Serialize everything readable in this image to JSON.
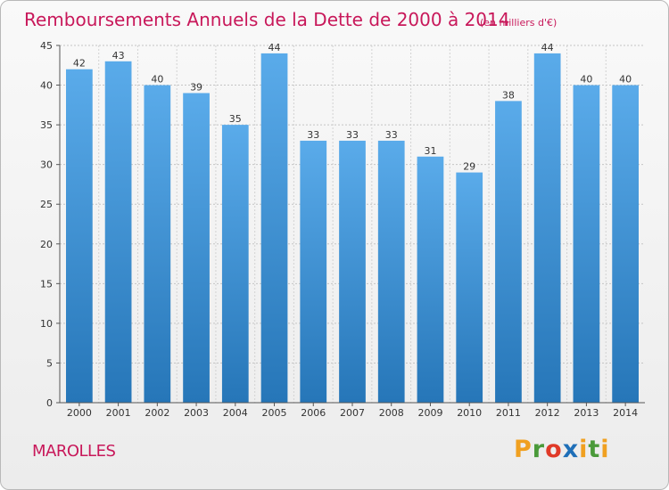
{
  "chart_data": {
    "type": "bar",
    "title": "Remboursements Annuels de la Dette de 2000 à 2014",
    "subtitle": "(en milliers d'€)",
    "categories": [
      "2000",
      "2001",
      "2002",
      "2003",
      "2004",
      "2005",
      "2006",
      "2007",
      "2008",
      "2009",
      "2010",
      "2011",
      "2012",
      "2013",
      "2014"
    ],
    "values": [
      42,
      43,
      40,
      39,
      35,
      44,
      33,
      33,
      33,
      31,
      29,
      38,
      44,
      40,
      40
    ],
    "ylim": [
      0,
      45
    ],
    "yticks": [
      0,
      5,
      10,
      15,
      20,
      25,
      30,
      35,
      40,
      45
    ],
    "xlabel": "",
    "ylabel": "",
    "grid": "horizontal",
    "bar_color": "#4a97dc"
  },
  "footer": {
    "commune": "MAROLLES",
    "brand_letters": [
      "P",
      "r",
      "o",
      "x",
      "i",
      "t",
      "i"
    ],
    "brand_colors": [
      "#f0a020",
      "#4a9a3a",
      "#e03a28",
      "#1f6fb8",
      "#f0a020",
      "#4a9a3a",
      "#f0a020"
    ]
  }
}
